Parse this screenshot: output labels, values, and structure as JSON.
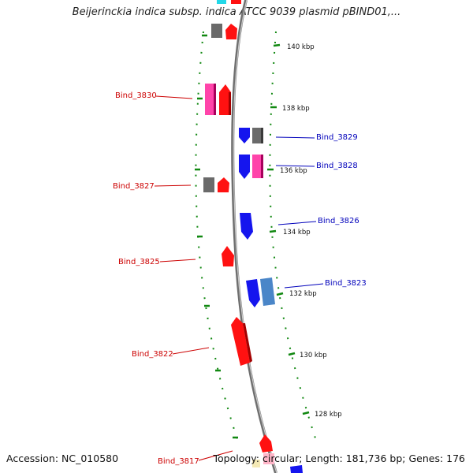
{
  "title": "Beijerinckia indica subsp. indica ATCC 9039 plasmid pBIND01,...",
  "footer": {
    "accession": "Accession: NC_010580",
    "summary": "Topology: circular; Length: 181,736 bp; Genes: 176"
  },
  "scale_labels": [
    "140 kbp",
    "138 kbp",
    "136 kbp",
    "134 kbp",
    "132 kbp",
    "130 kbp",
    "128 kbp"
  ],
  "genes_left": [
    "Bind_3830",
    "Bind_3827",
    "Bind_3825",
    "Bind_3822",
    "Bind_3817"
  ],
  "genes_right": [
    "Bind_3829",
    "Bind_3828",
    "Bind_3826",
    "Bind_3823"
  ],
  "colors": {
    "backbone": "#888888",
    "reverse_label": "#cc0000",
    "forward_label": "#0000bb",
    "tick": "#118811",
    "red": "#ff1111",
    "blue": "#1515ee",
    "pink": "#ff44aa",
    "gray": "#6a6a6a",
    "steelblue": "#4a86c8"
  }
}
